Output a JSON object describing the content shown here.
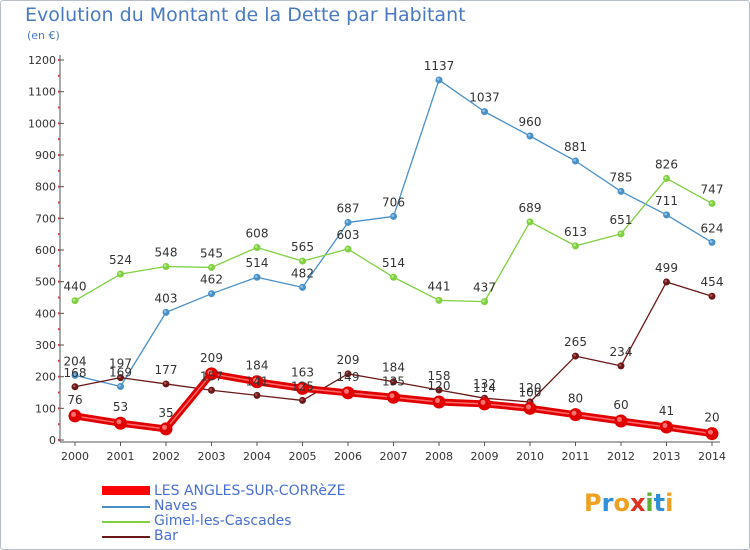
{
  "header": {
    "title": "Evolution du Montant de la Dette par Habitant",
    "subtitle": "(en €)"
  },
  "logo": {
    "letters": [
      "P",
      "r",
      "o",
      "x",
      "i",
      "t",
      "i"
    ],
    "colors": [
      "#f0a020",
      "#2f8fd8",
      "#f0a020",
      "#e03020",
      "#60b030",
      "#2f8fd8",
      "#f0a020"
    ]
  },
  "chart_data": {
    "type": "line",
    "title": "Evolution du Montant de la Dette par Habitant",
    "subtitle": "(en €)",
    "categories": [
      "2000",
      "2001",
      "2002",
      "2003",
      "2004",
      "2005",
      "2006",
      "2007",
      "2008",
      "2009",
      "2010",
      "2011",
      "2012",
      "2013",
      "2014"
    ],
    "ylim": [
      0,
      1200
    ],
    "yticks": [
      0,
      100,
      200,
      300,
      400,
      500,
      600,
      700,
      800,
      900,
      1000,
      1100,
      1200
    ],
    "grid": false,
    "legend_position": "bottom-left",
    "series": [
      {
        "name": "LES ANGLES-SUR-CORRèZE",
        "color": "#ff0000",
        "values": [
          76,
          53,
          35,
          209,
          184,
          163,
          149,
          135,
          120,
          114,
          100,
          80,
          60,
          41,
          20
        ],
        "labels": [
          "76",
          "53",
          "35",
          "209",
          "184",
          "163",
          "149",
          "135",
          "120",
          "114",
          "100",
          "80",
          "60",
          "41",
          "20"
        ]
      },
      {
        "name": "Naves",
        "color": "#4a90c8",
        "values": [
          204,
          169,
          403,
          462,
          514,
          482,
          687,
          706,
          1137,
          1037,
          960,
          881,
          785,
          711,
          624
        ],
        "labels": [
          "204",
          "169",
          "403",
          "462",
          "514",
          "482",
          "687",
          "706",
          "1137",
          "1037",
          "960",
          "881",
          "785",
          "711",
          "624"
        ]
      },
      {
        "name": "Gimel-les-Cascades",
        "color": "#7fd040",
        "values": [
          440,
          524,
          548,
          545,
          608,
          565,
          603,
          514,
          441,
          437,
          689,
          613,
          651,
          826,
          747
        ],
        "labels": [
          "440",
          "524",
          "548",
          "545",
          "608",
          "565",
          "603",
          "514",
          "441",
          "437",
          "689",
          "613",
          "651",
          "826",
          "747"
        ]
      },
      {
        "name": "Bar",
        "color": "#6b1818",
        "values": [
          168,
          197,
          177,
          157,
          141,
          125,
          209,
          184,
          158,
          132,
          120,
          265,
          234,
          499,
          454
        ],
        "labels": [
          "168",
          "197",
          "177",
          "157",
          "141",
          "125",
          "209",
          "184",
          "158",
          "132",
          "120",
          "265",
          "234",
          "499",
          "454"
        ]
      }
    ]
  }
}
